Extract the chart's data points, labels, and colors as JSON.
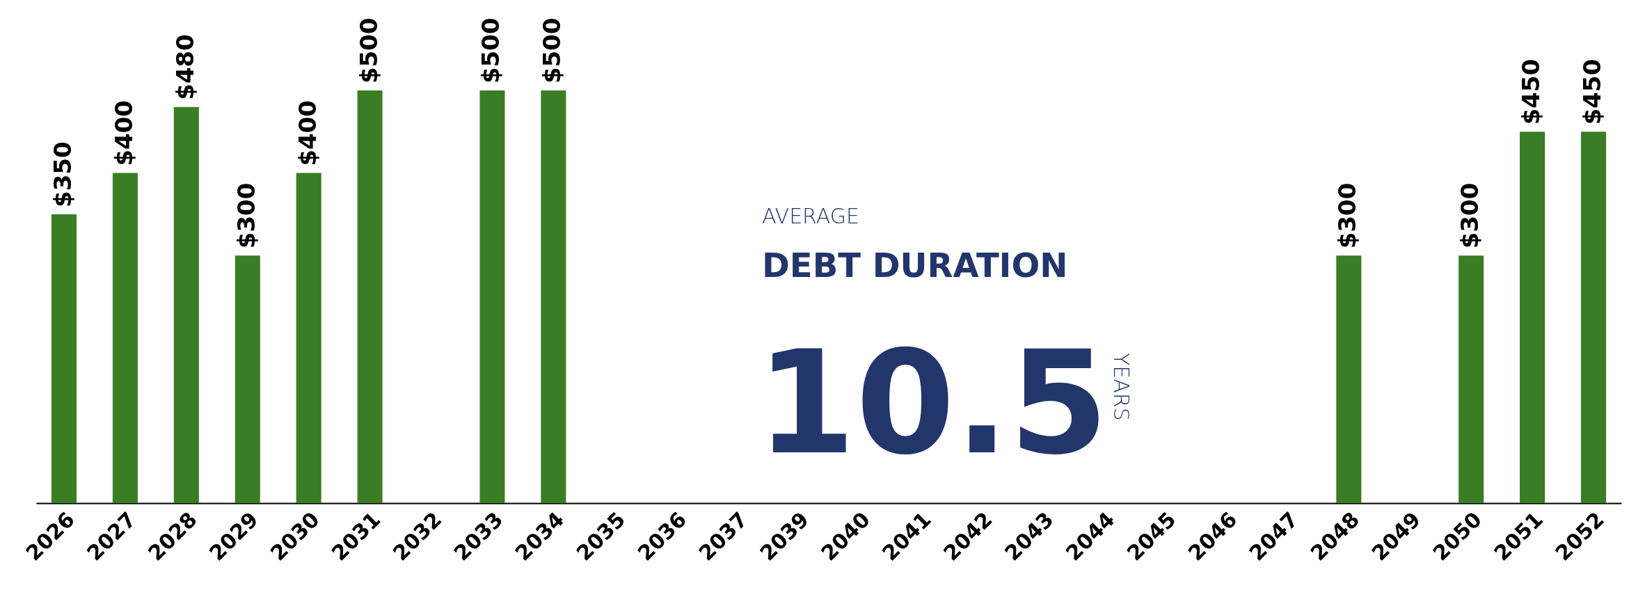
{
  "chart_data": {
    "type": "bar",
    "categories": [
      "2026",
      "2027",
      "2028",
      "2029",
      "2030",
      "2031",
      "2032",
      "2033",
      "2034",
      "2035",
      "2036",
      "2037",
      "2039",
      "2040",
      "2041",
      "2042",
      "2043",
      "2044",
      "2045",
      "2046",
      "2047",
      "2048",
      "2049",
      "2050",
      "2051",
      "2052"
    ],
    "values": [
      350,
      400,
      480,
      300,
      400,
      500,
      null,
      500,
      500,
      null,
      null,
      null,
      null,
      null,
      null,
      null,
      null,
      null,
      null,
      null,
      null,
      300,
      null,
      300,
      450,
      450
    ],
    "value_labels": [
      "$350",
      "$400",
      "$480",
      "$300",
      "$400",
      "$500",
      null,
      "$500",
      "$500",
      null,
      null,
      null,
      null,
      null,
      null,
      null,
      null,
      null,
      null,
      null,
      null,
      "$300",
      null,
      "$300",
      "$450",
      "$450"
    ],
    "color": "#3a7d24",
    "tick_labels": "x",
    "grid": false,
    "annotations": [
      "AVERAGE",
      "DEBT DURATION",
      "10.5",
      "YEARS"
    ]
  }
}
